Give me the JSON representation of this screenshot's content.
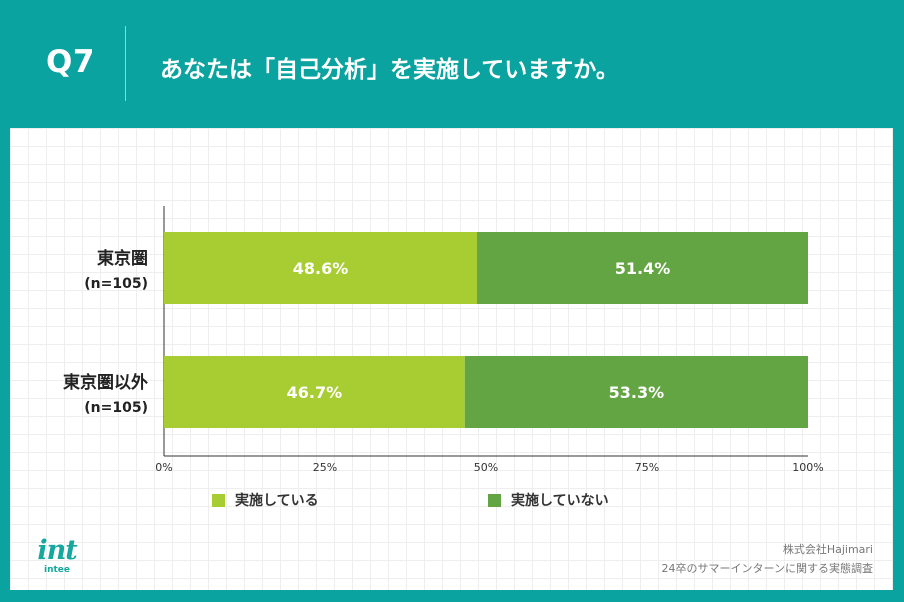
{
  "header": {
    "question_number": "Q7",
    "question_text": "あなたは「自己分析」を実施していますか。"
  },
  "legend": [
    {
      "label": "実施している",
      "color": "#a8cd33"
    },
    {
      "label": "実施していない",
      "color": "#63a543"
    }
  ],
  "footer": {
    "logo_mark": "int",
    "logo_text": "intee",
    "company": "株式会社Hajimari",
    "survey": "24卒のサマーインターンに関する実態調査"
  },
  "colors": {
    "brand_teal": "#0aa39f",
    "series_1": "#a8cd33",
    "series_2": "#63a543"
  },
  "chart_data": {
    "type": "bar",
    "orientation": "horizontal",
    "stacked": true,
    "percent": true,
    "categories": [
      {
        "name": "東京圏",
        "n": "(n=105)"
      },
      {
        "name": "東京圏以外",
        "n": "(n=105)"
      }
    ],
    "series": [
      {
        "name": "実施している",
        "values": [
          48.6,
          46.7
        ],
        "labels": [
          "48.6%",
          "46.7%"
        ],
        "color": "#a8cd33"
      },
      {
        "name": "実施していない",
        "values": [
          51.4,
          53.3
        ],
        "labels": [
          "51.4%",
          "53.3%"
        ],
        "color": "#63a543"
      }
    ],
    "xticks": [
      "0%",
      "25%",
      "50%",
      "75%",
      "100%"
    ],
    "xlim": [
      0,
      100
    ],
    "legend_position": "bottom",
    "grid": false
  }
}
